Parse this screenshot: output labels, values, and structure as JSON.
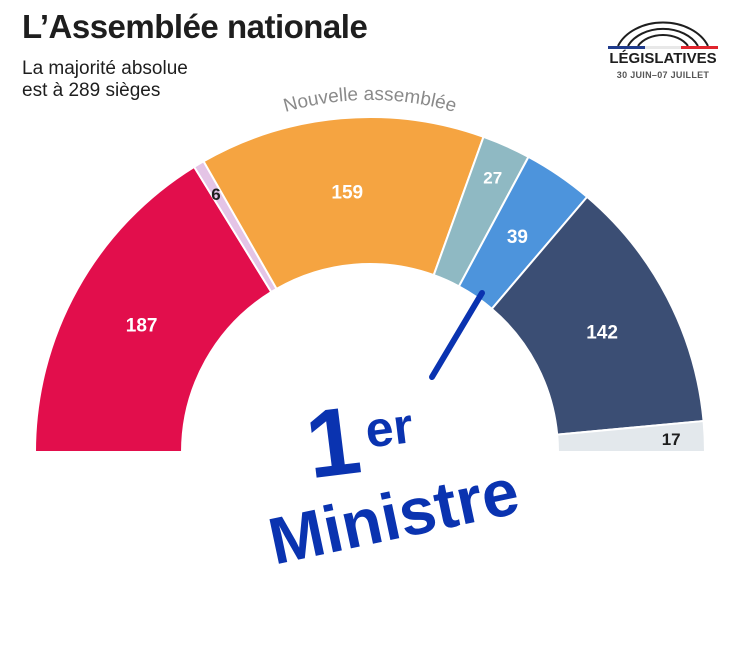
{
  "header": {
    "title": "L’Assemblée nationale",
    "subtitle_line1": "La majorité absolue",
    "subtitle_line2": "est à 289 sièges"
  },
  "logo": {
    "title": "LÉGISLATIVES",
    "subtitle": "30 JUIN–07 JUILLET",
    "colors": [
      "#1f3b8c",
      "#e8e8e8",
      "#e0242c"
    ]
  },
  "annotation": {
    "digit": "1",
    "superscript": "er",
    "word": "Ministre",
    "color": "#0a33b0"
  },
  "chart_data": {
    "type": "pie",
    "title": "Nouvelle assemblée",
    "total": 577,
    "majority": 289,
    "segments": [
      {
        "value": 187,
        "label": "187",
        "color": "#e20e4c",
        "label_color": "#ffffff"
      },
      {
        "value": 6,
        "label": "6",
        "color": "#e4c4e6",
        "label_color": "#1e1e1e"
      },
      {
        "value": 159,
        "label": "159",
        "color": "#f5a441",
        "label_color": "#ffffff"
      },
      {
        "value": 27,
        "label": "27",
        "color": "#8fb9c3",
        "label_color": "#ffffff"
      },
      {
        "value": 39,
        "label": "39",
        "color": "#4d94dc",
        "label_color": "#ffffff"
      },
      {
        "value": 142,
        "label": "142",
        "color": "#3b4e74",
        "label_color": "#ffffff"
      },
      {
        "value": 17,
        "label": "17",
        "color": "#e3e8ec",
        "label_color": "#1e1e1e"
      }
    ]
  }
}
